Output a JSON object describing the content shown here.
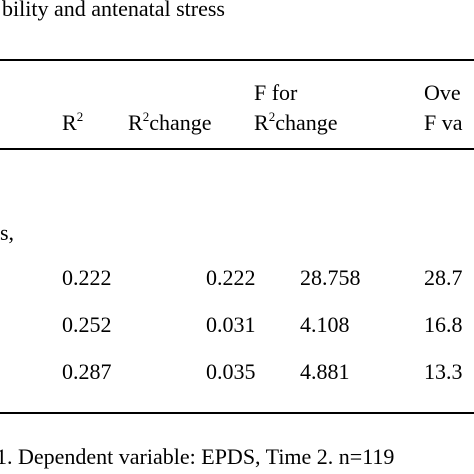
{
  "caption": "bility and antenatal stress",
  "headers": {
    "r2": {
      "base": "R",
      "sup": "2"
    },
    "r2_change": {
      "base": "R",
      "sup": "2",
      "tail": "change"
    },
    "f_for_line1": "F for",
    "f_for_line2": {
      "base": "R",
      "sup": "2",
      "tail": "change"
    },
    "overall_line1": "Ove",
    "overall_line2": "F va"
  },
  "block_label": "s,",
  "rows": [
    {
      "r2": "0.222",
      "r2_change": "0.222",
      "f": "28.758",
      "overall": "28.7"
    },
    {
      "r2": "0.252",
      "r2_change": "0.031",
      "f": "4.108",
      "overall": "16.8"
    },
    {
      "r2": "0.287",
      "r2_change": "0.035",
      "f": "4.881",
      "overall": "13.3"
    }
  ],
  "footnote": "1.  Dependent variable:  EPDS, Time 2.  n=119"
}
